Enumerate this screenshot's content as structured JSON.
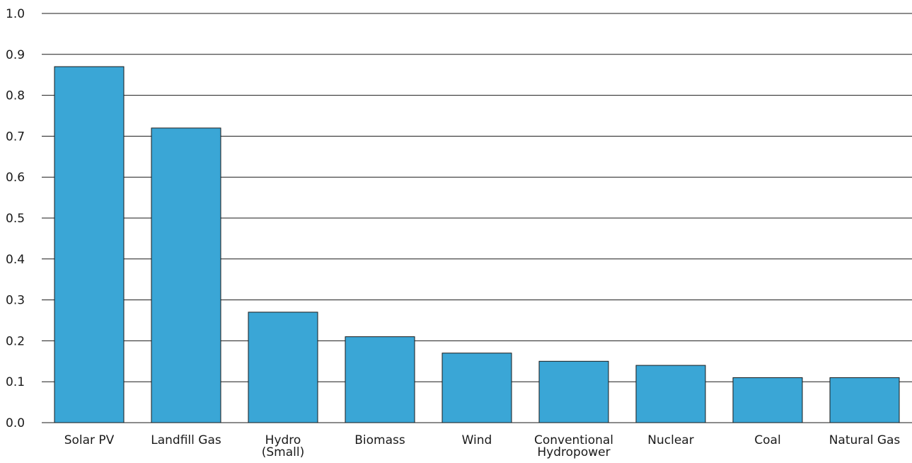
{
  "chart_data": {
    "type": "bar",
    "categories": [
      [
        "Solar PV"
      ],
      [
        "Landfill Gas"
      ],
      [
        "Hydro",
        "(Small)"
      ],
      [
        "Biomass"
      ],
      [
        "Wind"
      ],
      [
        "Conventional",
        "Hydropower"
      ],
      [
        "Nuclear"
      ],
      [
        "Coal"
      ],
      [
        "Natural Gas"
      ]
    ],
    "values": [
      0.87,
      0.72,
      0.27,
      0.21,
      0.17,
      0.15,
      0.14,
      0.11,
      0.11
    ],
    "ylim": [
      0,
      1.0
    ],
    "yticks": [
      "0.0",
      "0.1",
      "0.2",
      "0.3",
      "0.4",
      "0.5",
      "0.6",
      "0.7",
      "0.8",
      "0.9",
      "1.0"
    ],
    "grid": true,
    "bar_color": "#3aa6d6",
    "title": "",
    "xlabel": "",
    "ylabel": ""
  }
}
